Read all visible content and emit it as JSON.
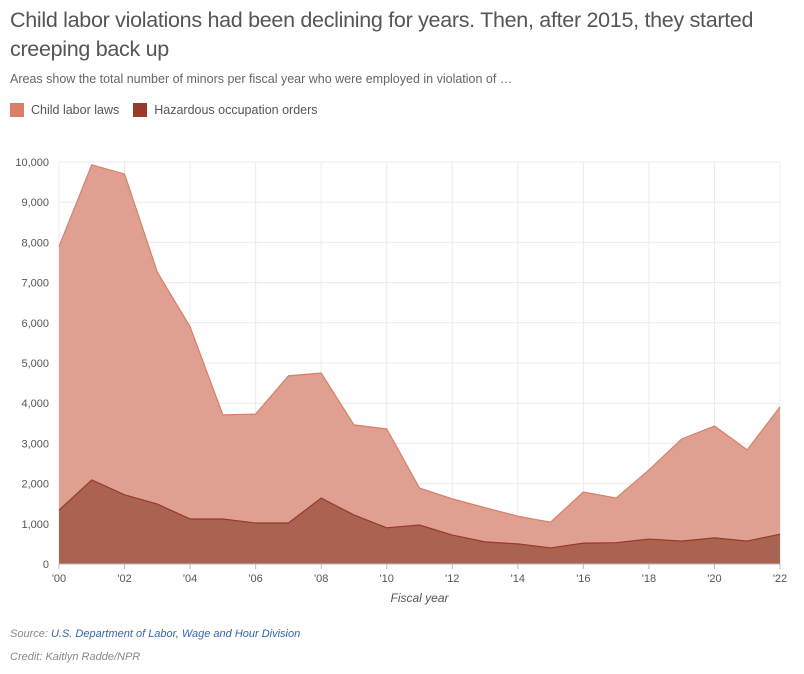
{
  "title": "Child labor violations had been declining for years. Then, after 2015, they started creeping back up",
  "subtitle": "Areas show the total number of minors per fiscal year who were employed in violation of …",
  "source_label": "Source:",
  "source_link": "U.S. Department of Labor, Wage and Hour Division",
  "credit": "Credit: Kaitlyn Radde/NPR",
  "chart_data": {
    "type": "area",
    "xlabel": "Fiscal year",
    "ylabel": "",
    "ylim": [
      0,
      10000
    ],
    "xlim": [
      2000,
      2022
    ],
    "grid": true,
    "legend_placement": "top-left",
    "x": [
      2000,
      2001,
      2002,
      2003,
      2004,
      2005,
      2006,
      2007,
      2008,
      2009,
      2010,
      2011,
      2012,
      2013,
      2014,
      2015,
      2016,
      2017,
      2018,
      2019,
      2020,
      2021,
      2022
    ],
    "xticks": [
      2000,
      2002,
      2004,
      2006,
      2008,
      2010,
      2012,
      2014,
      2016,
      2018,
      2020,
      2022
    ],
    "xtick_labels": [
      "'00",
      "'02",
      "'04",
      "'06",
      "'08",
      "'10",
      "'12",
      "'14",
      "'16",
      "'18",
      "'20",
      "'22"
    ],
    "yticks": [
      0,
      1000,
      2000,
      3000,
      4000,
      5000,
      6000,
      7000,
      8000,
      9000,
      10000
    ],
    "ytick_labels": [
      "0",
      "1,000",
      "2,000",
      "3,000",
      "4,000",
      "5,000",
      "6,000",
      "7,000",
      "8,000",
      "9,000",
      "10,000"
    ],
    "series": [
      {
        "name": "Child labor laws",
        "color": "#d97e68",
        "fill": "#dfa091",
        "values": [
          7900,
          9930,
          9700,
          7260,
          5900,
          3710,
          3730,
          4680,
          4750,
          3460,
          3360,
          1890,
          1620,
          1400,
          1190,
          1040,
          1790,
          1640,
          2340,
          3110,
          3430,
          2840,
          3910
        ]
      },
      {
        "name": "Hazardous occupation orders",
        "color": "#983a27",
        "fill": "#a65f4e",
        "values": [
          1340,
          2090,
          1720,
          1490,
          1120,
          1120,
          1020,
          1020,
          1640,
          1220,
          900,
          970,
          720,
          550,
          500,
          400,
          520,
          530,
          620,
          570,
          650,
          570,
          740
        ]
      }
    ]
  }
}
